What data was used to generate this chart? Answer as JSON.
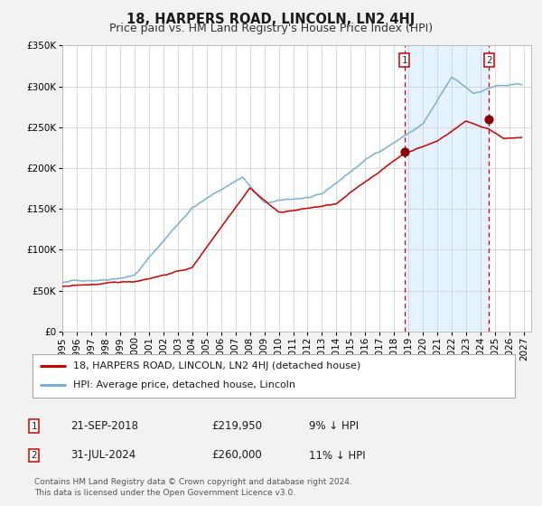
{
  "title": "18, HARPERS ROAD, LINCOLN, LN2 4HJ",
  "subtitle": "Price paid vs. HM Land Registry's House Price Index (HPI)",
  "ylim": [
    0,
    350000
  ],
  "xlim_start": 1995.0,
  "xlim_end": 2027.5,
  "background_color": "#f2f2f2",
  "plot_bg_color": "#ffffff",
  "annotation1": {
    "label": "1",
    "date": "21-SEP-2018",
    "price": 219950,
    "hpi_note": "9% ↓ HPI",
    "year": 2018.72
  },
  "annotation2": {
    "label": "2",
    "date": "31-JUL-2024",
    "price": 260000,
    "hpi_note": "11% ↓ HPI",
    "year": 2024.58
  },
  "shade_start": 2018.72,
  "shade_end": 2024.58,
  "legend_label1": "18, HARPERS ROAD, LINCOLN, LN2 4HJ (detached house)",
  "legend_label2": "HPI: Average price, detached house, Lincoln",
  "footer1": "Contains HM Land Registry data © Crown copyright and database right 2024.",
  "footer2": "This data is licensed under the Open Government Licence v3.0.",
  "red_line_color": "#cc0000",
  "blue_line_color": "#7bafd4",
  "dot_color": "#8b0000",
  "vline_color": "#cc0000",
  "shade_color": "#ddeeff",
  "title_fontsize": 10.5,
  "subtitle_fontsize": 9,
  "tick_fontsize": 7.5,
  "legend_fontsize": 8,
  "annot_fontsize": 8.5,
  "footer_fontsize": 6.5,
  "yticks": [
    0,
    50000,
    100000,
    150000,
    200000,
    250000,
    300000,
    350000
  ],
  "xticks": [
    1995,
    1996,
    1997,
    1998,
    1999,
    2000,
    2001,
    2002,
    2003,
    2004,
    2005,
    2006,
    2007,
    2008,
    2009,
    2010,
    2011,
    2012,
    2013,
    2014,
    2015,
    2016,
    2017,
    2018,
    2019,
    2020,
    2021,
    2022,
    2023,
    2024,
    2025,
    2026,
    2027
  ]
}
